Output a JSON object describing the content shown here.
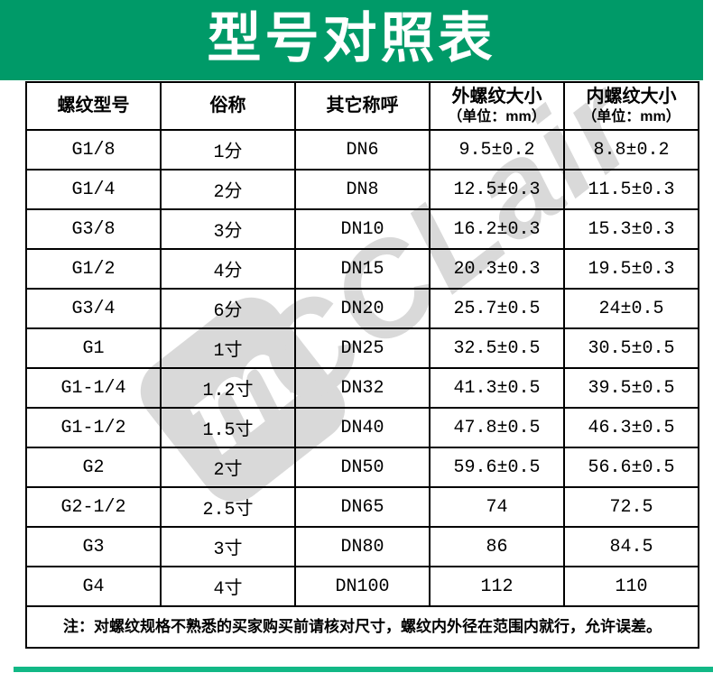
{
  "page": {
    "title": "型号对照表"
  },
  "colors": {
    "title_band_green": "#009a68",
    "header_row_yellow": "#ffff00",
    "bottom_bar_teal": "#12b886",
    "watermark_gray": "#d9d9d9",
    "title_text": "#ffffff",
    "table_text": "#000000"
  },
  "watermark": {
    "text": "CCLair",
    "logo_glyph": "m"
  },
  "table": {
    "headers": [
      {
        "label": "螺纹型号",
        "unit": ""
      },
      {
        "label": "俗称",
        "unit": ""
      },
      {
        "label": "其它称呼",
        "unit": ""
      },
      {
        "label": "外螺纹大小",
        "unit": "（单位：mm）"
      },
      {
        "label": "内螺纹大小",
        "unit": "（单位：mm）"
      }
    ],
    "rows": [
      [
        "G1/8",
        "1分",
        "DN6",
        "9.5±0.2",
        "8.8±0.2"
      ],
      [
        "G1/4",
        "2分",
        "DN8",
        "12.5±0.3",
        "11.5±0.3"
      ],
      [
        "G3/8",
        "3分",
        "DN10",
        "16.2±0.3",
        "15.3±0.3"
      ],
      [
        "G1/2",
        "4分",
        "DN15",
        "20.3±0.3",
        "19.5±0.3"
      ],
      [
        "G3/4",
        "6分",
        "DN20",
        "25.7±0.5",
        "24±0.5"
      ],
      [
        "G1",
        "1寸",
        "DN25",
        "32.5±0.5",
        "30.5±0.5"
      ],
      [
        "G1-1/4",
        "1.2寸",
        "DN32",
        "41.3±0.5",
        "39.5±0.5"
      ],
      [
        "G1-1/2",
        "1.5寸",
        "DN40",
        "47.8±0.5",
        "46.3±0.5"
      ],
      [
        "G2",
        "2寸",
        "DN50",
        "59.6±0.5",
        "56.6±0.5"
      ],
      [
        "G2-1/2",
        "2.5寸",
        "DN65",
        "74",
        "72.5"
      ],
      [
        "G3",
        "3寸",
        "DN80",
        "86",
        "84.5"
      ],
      [
        "G4",
        "4寸",
        "DN100",
        "112",
        "110"
      ]
    ],
    "note": "注：对螺纹规格不熟悉的买家购买前请核对尺寸，螺纹内外径在范围内就行，允许误差。"
  }
}
